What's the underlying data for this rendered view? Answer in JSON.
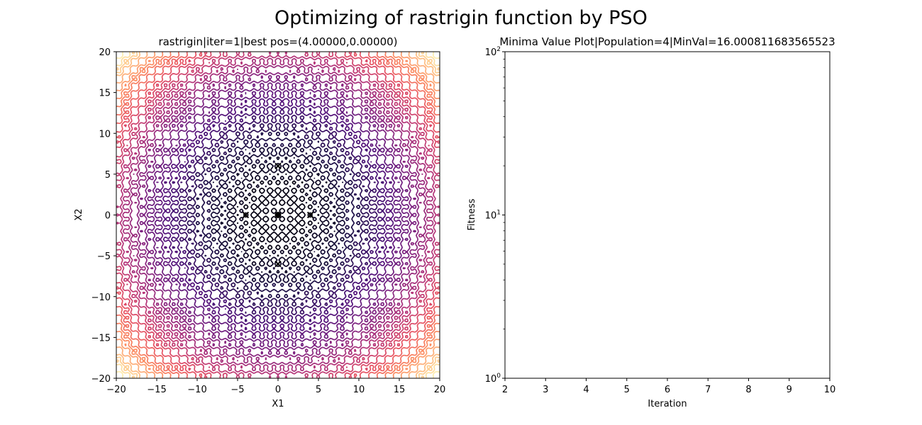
{
  "figure": {
    "suptitle": "Optimizing of rastrigin function by PSO"
  },
  "chart_data": [
    {
      "type": "contour",
      "title": "rastrigin|iter=1|best pos=(4.00000,0.00000)",
      "xlabel": "X1",
      "ylabel": "X2",
      "xlim": [
        -20,
        20
      ],
      "ylim": [
        -20,
        20
      ],
      "xticks": [
        -20,
        -15,
        -10,
        -5,
        0,
        5,
        10,
        15,
        20
      ],
      "yticks": [
        -20,
        -15,
        -10,
        -5,
        0,
        5,
        10,
        15,
        20
      ],
      "function": "rastrigin",
      "colormap": "magma",
      "contour_levels": 30,
      "grid": false,
      "global_optimum": {
        "x": 0,
        "y": 0,
        "marker": "dot"
      },
      "particles": [
        {
          "x": -4,
          "y": 0
        },
        {
          "x": 4,
          "y": 0
        },
        {
          "x": 0,
          "y": 6
        },
        {
          "x": 0,
          "y": -6
        }
      ],
      "particle_marker": "x"
    },
    {
      "type": "line",
      "title": "Minima Value Plot|Population=4|MinVal=16.000811683565523",
      "xlabel": "Iteration",
      "ylabel": "Fitness",
      "xlim": [
        2,
        10
      ],
      "ylim": [
        1,
        100
      ],
      "yscale": "log",
      "xticks": [
        2,
        3,
        4,
        5,
        6,
        7,
        8,
        9,
        10
      ],
      "yticks": [
        {
          "base": "10",
          "exp": "0"
        },
        {
          "base": "10",
          "exp": "1"
        },
        {
          "base": "10",
          "exp": "2"
        }
      ],
      "grid": false,
      "series": [
        {
          "values": []
        }
      ]
    }
  ]
}
